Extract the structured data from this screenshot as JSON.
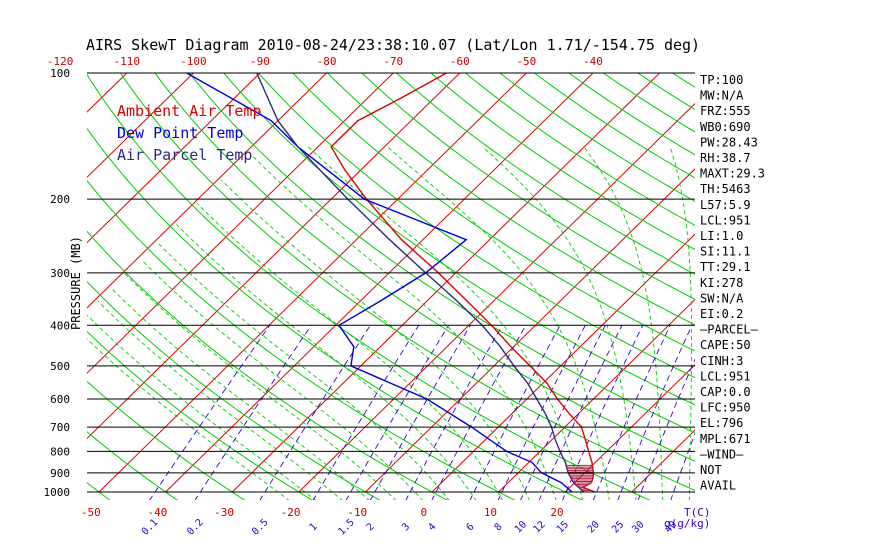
{
  "chart_data": {
    "type": "line",
    "title": "AIRS SkewT Diagram 2010-08-24/23:38:10.07 (Lat/Lon 1.71/-154.75 deg)",
    "ylabel": "PRESSURE (MB)",
    "xlabel": "T(C)",
    "mixing_ratio_label": "g(g/kg)",
    "pressure_ticks": [
      100,
      200,
      300,
      400,
      500,
      600,
      700,
      800,
      900,
      1000
    ],
    "pressure_tick_labels": [
      "100",
      "200",
      "300",
      "400",
      "500",
      "600",
      "700",
      "800",
      "900",
      "1000"
    ],
    "top_temp_ticks": [
      "-120",
      "-110",
      "-100",
      "-90",
      "-80",
      "-70",
      "-60",
      "-50",
      "-40"
    ],
    "bottom_temp_ticks": [
      "-50",
      "-40",
      "-30",
      "-20",
      "-10",
      "0",
      "10",
      "20"
    ],
    "mixing_ratio_ticks": [
      "0.1",
      "0.2",
      "0.5",
      "1",
      "1.5",
      "2",
      "3",
      "4",
      "6",
      "8",
      "10",
      "12",
      "15",
      "20",
      "25",
      "30",
      "40"
    ],
    "legend": [
      {
        "name": "Ambient Air Temp",
        "color": "#dd0000"
      },
      {
        "name": "Dew Point Temp",
        "color": "#0000dd"
      },
      {
        "name": "Air Parcel Temp",
        "color": "#2a2a80"
      }
    ],
    "series": [
      {
        "name": "Ambient Air Temp",
        "color": "#dd0000",
        "points": [
          [
            1000,
            24.5
          ],
          [
            975,
            22.0
          ],
          [
            950,
            22.5
          ],
          [
            925,
            22.0
          ],
          [
            900,
            21.3
          ],
          [
            850,
            19.5
          ],
          [
            800,
            17.3
          ],
          [
            750,
            15.0
          ],
          [
            700,
            12.5
          ],
          [
            650,
            8.6
          ],
          [
            600,
            4.6
          ],
          [
            550,
            0.6
          ],
          [
            500,
            -4.6
          ],
          [
            450,
            -10.4
          ],
          [
            400,
            -16.6
          ],
          [
            350,
            -24.0
          ],
          [
            300,
            -32.6
          ],
          [
            250,
            -43.2
          ],
          [
            200,
            -54.7
          ],
          [
            170,
            -62.5
          ],
          [
            150,
            -68.0
          ],
          [
            130,
            -68.0
          ],
          [
            115,
            -65.0
          ],
          [
            100,
            -62.0
          ]
        ]
      },
      {
        "name": "Dew Point Temp",
        "color": "#0000dd",
        "points": [
          [
            1000,
            21.0
          ],
          [
            950,
            18.0
          ],
          [
            900,
            13.5
          ],
          [
            850,
            10.5
          ],
          [
            800,
            5.0
          ],
          [
            700,
            -4.0
          ],
          [
            600,
            -15.0
          ],
          [
            500,
            -31.5
          ],
          [
            450,
            -34.0
          ],
          [
            400,
            -39.5
          ],
          [
            350,
            -37.0
          ],
          [
            300,
            -34.5
          ],
          [
            250,
            -33.5
          ],
          [
            200,
            -55.0
          ],
          [
            150,
            -73.0
          ],
          [
            130,
            -81.0
          ],
          [
            100,
            -101.0
          ]
        ]
      },
      {
        "name": "Air Parcel Temp",
        "color": "#2a2a80",
        "points": [
          [
            1000,
            22.8
          ],
          [
            950,
            19.8
          ],
          [
            900,
            17.5
          ],
          [
            850,
            15.5
          ],
          [
            800,
            13.0
          ],
          [
            750,
            10.5
          ],
          [
            700,
            8.0
          ],
          [
            650,
            5.0
          ],
          [
            600,
            1.5
          ],
          [
            550,
            -2.3
          ],
          [
            500,
            -7.0
          ],
          [
            450,
            -12.0
          ],
          [
            400,
            -18.0
          ],
          [
            350,
            -25.5
          ],
          [
            300,
            -34.5
          ],
          [
            250,
            -45.0
          ],
          [
            200,
            -57.5
          ],
          [
            150,
            -73.0
          ],
          [
            130,
            -80.0
          ],
          [
            100,
            -90.5
          ]
        ]
      }
    ]
  },
  "sidebar": [
    "TP:100",
    "MW:N/A",
    "FRZ:555",
    "WB0:690",
    "PW:28.43",
    "RH:38.7",
    "MAXT:29.3",
    "TH:5463",
    "L57:5.9",
    "LCL:951",
    "LI:1.0",
    "SI:11.1",
    "TT:29.1",
    "KI:278",
    "SW:N/A",
    "EI:0.2",
    "–PARCEL–",
    "CAPE:50",
    "CINH:3",
    "LCL:951",
    "CAP:0.0",
    "LFC:950",
    "EL:796",
    "MPL:671",
    "–WIND–",
    "NOT",
    "AVAIL"
  ],
  "colors": {
    "isotherm": "#dd0000",
    "dry_adiabat": "#00cc00",
    "moist_adiabat": "#00cc00",
    "mixing_ratio": "#3300cc",
    "pressure_line": "#000000"
  }
}
